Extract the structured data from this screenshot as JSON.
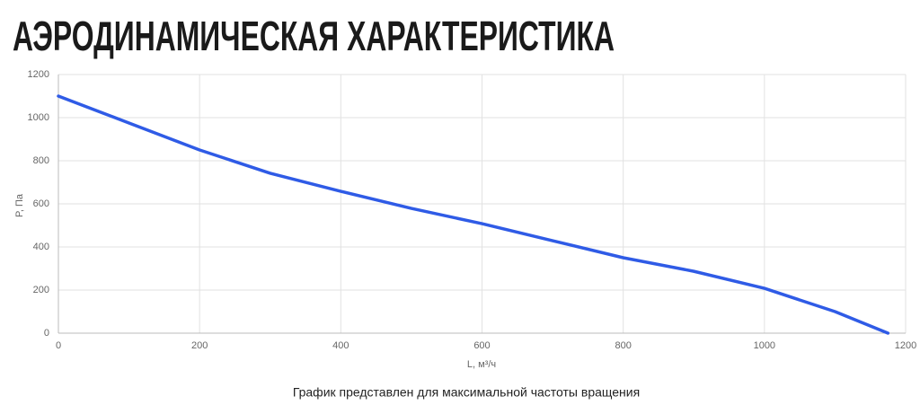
{
  "title": "АЭРОДИНАМИЧЕСКАЯ ХАРАКТЕРИСТИКА",
  "chart_data": {
    "type": "line",
    "x": [
      0,
      100,
      200,
      300,
      400,
      500,
      600,
      700,
      800,
      900,
      1000,
      1100,
      1175
    ],
    "series": [
      {
        "color": "#2f5be6",
        "values": [
          1100,
          975,
          850,
          742,
          658,
          579,
          508,
          429,
          350,
          287,
          208,
          100,
          0
        ]
      }
    ],
    "xlim": [
      0,
      1200
    ],
    "xticks": [
      0,
      200,
      400,
      600,
      800,
      1000,
      1200
    ],
    "ylim": [
      0,
      1200
    ],
    "yticks": [
      0,
      200,
      400,
      600,
      800,
      1000,
      1200
    ],
    "xlabel": "L, м³/ч",
    "ylabel": "P, Па",
    "grid": true
  },
  "note": "График представлен для максимальной частоты вращения"
}
